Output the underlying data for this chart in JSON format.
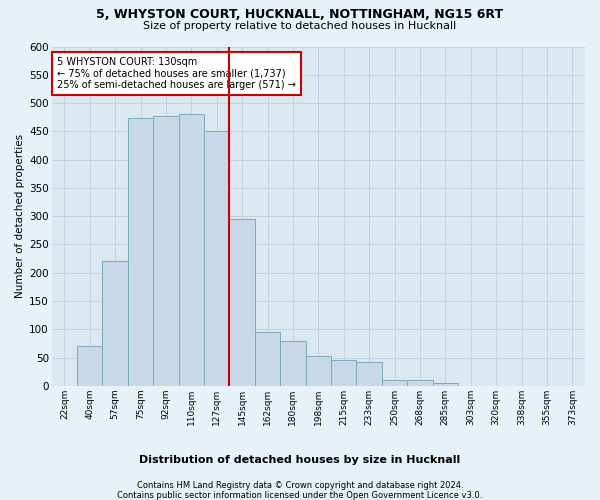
{
  "title1": "5, WHYSTON COURT, HUCKNALL, NOTTINGHAM, NG15 6RT",
  "title2": "Size of property relative to detached houses in Hucknall",
  "xlabel": "Distribution of detached houses by size in Hucknall",
  "ylabel": "Number of detached properties",
  "footnote1": "Contains HM Land Registry data © Crown copyright and database right 2024.",
  "footnote2": "Contains public sector information licensed under the Open Government Licence v3.0.",
  "bar_color": "#c8d8e8",
  "bar_edge_color": "#7aaabb",
  "grid_color": "#b8c8d8",
  "bg_color": "#dce8f0",
  "fig_bg_color": "#e8f0f8",
  "annotation_box_color": "#cc0000",
  "vline_color": "#cc0000",
  "annotation_line1": "5 WHYSTON COURT: 130sqm",
  "annotation_line2": "← 75% of detached houses are smaller (1,737)",
  "annotation_line3": "25% of semi-detached houses are larger (571) →",
  "categories": [
    "22sqm",
    "40sqm",
    "57sqm",
    "75sqm",
    "92sqm",
    "110sqm",
    "127sqm",
    "145sqm",
    "162sqm",
    "180sqm",
    "198sqm",
    "215sqm",
    "233sqm",
    "250sqm",
    "268sqm",
    "285sqm",
    "303sqm",
    "320sqm",
    "338sqm",
    "355sqm",
    "373sqm"
  ],
  "values": [
    0,
    70,
    220,
    473,
    477,
    480,
    450,
    295,
    95,
    80,
    53,
    46,
    42,
    11,
    11,
    5,
    0,
    0,
    0,
    0,
    0
  ],
  "ylim": [
    0,
    600
  ],
  "yticks": [
    0,
    50,
    100,
    150,
    200,
    250,
    300,
    350,
    400,
    450,
    500,
    550,
    600
  ]
}
